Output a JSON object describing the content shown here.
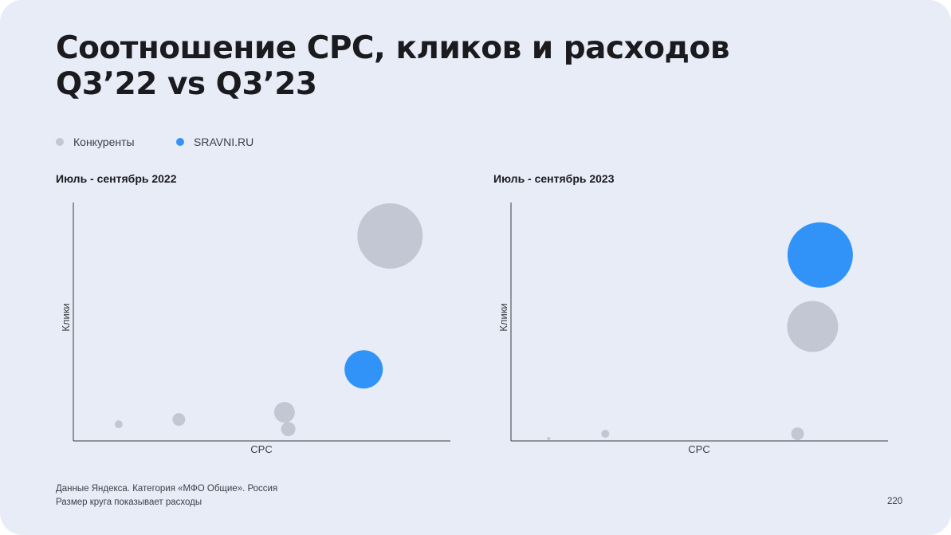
{
  "slide": {
    "title_line1": "Соотношение CPC, кликов и расходов",
    "title_line2": "Q3’22 vs Q3’23",
    "footnote_line1": "Данные Яндекса. Категория «МФО Общие». Россия",
    "footnote_line2": "Размер круга показывает расходы",
    "page_number": "220"
  },
  "legend": [
    {
      "label": "Конкуренты",
      "color": "#c2c7d3"
    },
    {
      "label": "SRAVNI.RU",
      "color": "#3193f7"
    }
  ],
  "chart_data": [
    {
      "type": "bubble",
      "title": "Июль - сентябрь 2022",
      "xlabel": "CPC",
      "ylabel": "Клики",
      "xlim": [
        0,
        100
      ],
      "ylim": [
        0,
        100
      ],
      "grid": false,
      "series": [
        {
          "name": "Конкуренты",
          "color": "#c2c7d3",
          "points": [
            {
              "x": 12,
              "y": 7,
              "size": 5
            },
            {
              "x": 28,
              "y": 9,
              "size": 8
            },
            {
              "x": 56,
              "y": 12,
              "size": 13
            },
            {
              "x": 57,
              "y": 5,
              "size": 9
            },
            {
              "x": 84,
              "y": 86,
              "size": 41
            }
          ]
        },
        {
          "name": "SRAVNI.RU",
          "color": "#3193f7",
          "points": [
            {
              "x": 77,
              "y": 30,
              "size": 24
            }
          ]
        }
      ]
    },
    {
      "type": "bubble",
      "title": "Июль - сентябрь 2023",
      "xlabel": "CPC",
      "ylabel": "Клики",
      "xlim": [
        0,
        100
      ],
      "ylim": [
        0,
        100
      ],
      "grid": false,
      "series": [
        {
          "name": "Конкуренты",
          "color": "#c2c7d3",
          "points": [
            {
              "x": 10,
              "y": 1,
              "size": 2
            },
            {
              "x": 25,
              "y": 3,
              "size": 5
            },
            {
              "x": 76,
              "y": 3,
              "size": 8
            },
            {
              "x": 80,
              "y": 48,
              "size": 32
            }
          ]
        },
        {
          "name": "SRAVNI.RU",
          "color": "#3193f7",
          "points": [
            {
              "x": 82,
              "y": 78,
              "size": 41
            }
          ]
        }
      ]
    }
  ]
}
